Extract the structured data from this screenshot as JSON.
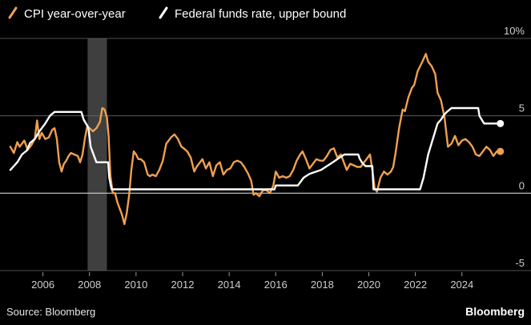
{
  "chart_data": {
    "type": "line",
    "title": "",
    "xlabel": "",
    "ylabel": "",
    "xlim": [
      2004.5,
      2025.9
    ],
    "ylim": [
      -5,
      10
    ],
    "y_ticks": [
      10,
      5,
      0,
      -5
    ],
    "y_tick_labels": [
      "10%",
      "5",
      "0",
      "-5"
    ],
    "x_ticks": [
      2006,
      2008,
      2010,
      2012,
      2014,
      2016,
      2018,
      2020,
      2022,
      2024
    ],
    "x_tick_labels": [
      "2006",
      "2008",
      "2010",
      "2012",
      "2014",
      "2016",
      "2018",
      "2020",
      "2022",
      "2024"
    ],
    "recession_shading": [
      [
        2007.92,
        2008.75
      ]
    ],
    "legend": [
      "CPI year-over-year",
      "Federal funds rate, upper bound"
    ],
    "series": [
      {
        "name": "CPI year-over-year",
        "color": "#f0a050",
        "end_marker": true,
        "points": [
          [
            2004.6,
            3.0
          ],
          [
            2004.75,
            2.6
          ],
          [
            2004.9,
            3.3
          ],
          [
            2005.0,
            3.0
          ],
          [
            2005.2,
            3.4
          ],
          [
            2005.35,
            2.8
          ],
          [
            2005.5,
            3.1
          ],
          [
            2005.65,
            3.5
          ],
          [
            2005.75,
            4.7
          ],
          [
            2005.85,
            3.5
          ],
          [
            2005.95,
            3.9
          ],
          [
            2006.1,
            3.5
          ],
          [
            2006.25,
            3.6
          ],
          [
            2006.4,
            4.1
          ],
          [
            2006.5,
            4.2
          ],
          [
            2006.6,
            3.5
          ],
          [
            2006.7,
            2.0
          ],
          [
            2006.8,
            1.4
          ],
          [
            2006.9,
            1.9
          ],
          [
            2007.0,
            2.1
          ],
          [
            2007.1,
            2.4
          ],
          [
            2007.2,
            2.6
          ],
          [
            2007.35,
            2.5
          ],
          [
            2007.5,
            2.4
          ],
          [
            2007.6,
            2.0
          ],
          [
            2007.7,
            2.5
          ],
          [
            2007.8,
            3.5
          ],
          [
            2007.9,
            4.3
          ],
          [
            2008.0,
            4.2
          ],
          [
            2008.15,
            4.0
          ],
          [
            2008.3,
            4.2
          ],
          [
            2008.45,
            4.6
          ],
          [
            2008.55,
            5.5
          ],
          [
            2008.65,
            5.4
          ],
          [
            2008.75,
            4.9
          ],
          [
            2008.82,
            3.7
          ],
          [
            2008.9,
            1.1
          ],
          [
            2009.0,
            0.0
          ],
          [
            2009.1,
            0.0
          ],
          [
            2009.2,
            -0.6
          ],
          [
            2009.3,
            -1.0
          ],
          [
            2009.4,
            -1.4
          ],
          [
            2009.5,
            -2.0
          ],
          [
            2009.6,
            -1.3
          ],
          [
            2009.7,
            -0.2
          ],
          [
            2009.8,
            1.5
          ],
          [
            2009.9,
            2.7
          ],
          [
            2010.0,
            2.5
          ],
          [
            2010.1,
            2.2
          ],
          [
            2010.2,
            2.2
          ],
          [
            2010.35,
            2.0
          ],
          [
            2010.5,
            1.2
          ],
          [
            2010.6,
            1.1
          ],
          [
            2010.7,
            1.2
          ],
          [
            2010.85,
            1.1
          ],
          [
            2011.0,
            1.5
          ],
          [
            2011.15,
            2.1
          ],
          [
            2011.3,
            3.2
          ],
          [
            2011.5,
            3.6
          ],
          [
            2011.65,
            3.8
          ],
          [
            2011.8,
            3.5
          ],
          [
            2011.95,
            3.0
          ],
          [
            2012.05,
            2.9
          ],
          [
            2012.2,
            2.7
          ],
          [
            2012.35,
            2.3
          ],
          [
            2012.5,
            1.4
          ],
          [
            2012.6,
            1.7
          ],
          [
            2012.75,
            2.0
          ],
          [
            2012.85,
            2.2
          ],
          [
            2013.0,
            1.6
          ],
          [
            2013.15,
            2.0
          ],
          [
            2013.3,
            1.1
          ],
          [
            2013.45,
            1.8
          ],
          [
            2013.6,
            2.0
          ],
          [
            2013.75,
            1.2
          ],
          [
            2013.9,
            1.5
          ],
          [
            2014.05,
            1.6
          ],
          [
            2014.2,
            2.0
          ],
          [
            2014.35,
            2.1
          ],
          [
            2014.5,
            2.0
          ],
          [
            2014.65,
            1.7
          ],
          [
            2014.8,
            1.3
          ],
          [
            2014.95,
            0.8
          ],
          [
            2015.05,
            -0.1
          ],
          [
            2015.15,
            0.0
          ],
          [
            2015.3,
            -0.2
          ],
          [
            2015.45,
            0.2
          ],
          [
            2015.6,
            0.2
          ],
          [
            2015.75,
            0.0
          ],
          [
            2015.9,
            0.5
          ],
          [
            2016.0,
            1.4
          ],
          [
            2016.15,
            1.0
          ],
          [
            2016.3,
            1.1
          ],
          [
            2016.45,
            1.0
          ],
          [
            2016.6,
            1.1
          ],
          [
            2016.75,
            1.5
          ],
          [
            2016.9,
            2.1
          ],
          [
            2017.05,
            2.5
          ],
          [
            2017.15,
            2.7
          ],
          [
            2017.3,
            2.2
          ],
          [
            2017.45,
            1.6
          ],
          [
            2017.6,
            1.9
          ],
          [
            2017.75,
            2.2
          ],
          [
            2017.9,
            2.1
          ],
          [
            2018.05,
            2.1
          ],
          [
            2018.2,
            2.4
          ],
          [
            2018.35,
            2.8
          ],
          [
            2018.5,
            2.9
          ],
          [
            2018.65,
            2.3
          ],
          [
            2018.8,
            2.5
          ],
          [
            2018.95,
            1.9
          ],
          [
            2019.05,
            1.5
          ],
          [
            2019.2,
            1.9
          ],
          [
            2019.35,
            1.8
          ],
          [
            2019.5,
            1.7
          ],
          [
            2019.65,
            1.7
          ],
          [
            2019.8,
            2.0
          ],
          [
            2019.95,
            2.3
          ],
          [
            2020.05,
            2.5
          ],
          [
            2020.15,
            1.5
          ],
          [
            2020.25,
            0.3
          ],
          [
            2020.35,
            0.1
          ],
          [
            2020.5,
            1.0
          ],
          [
            2020.65,
            1.4
          ],
          [
            2020.8,
            1.2
          ],
          [
            2020.95,
            1.4
          ],
          [
            2021.05,
            1.7
          ],
          [
            2021.15,
            2.6
          ],
          [
            2021.3,
            4.2
          ],
          [
            2021.45,
            5.4
          ],
          [
            2021.55,
            5.3
          ],
          [
            2021.7,
            6.2
          ],
          [
            2021.85,
            6.8
          ],
          [
            2021.95,
            7.0
          ],
          [
            2022.1,
            7.9
          ],
          [
            2022.3,
            8.5
          ],
          [
            2022.45,
            9.0
          ],
          [
            2022.55,
            8.5
          ],
          [
            2022.7,
            8.2
          ],
          [
            2022.85,
            7.7
          ],
          [
            2022.95,
            6.5
          ],
          [
            2023.1,
            6.0
          ],
          [
            2023.25,
            4.9
          ],
          [
            2023.4,
            3.0
          ],
          [
            2023.55,
            3.2
          ],
          [
            2023.7,
            3.7
          ],
          [
            2023.85,
            3.1
          ],
          [
            2024.0,
            3.4
          ],
          [
            2024.15,
            3.5
          ],
          [
            2024.3,
            3.3
          ],
          [
            2024.45,
            3.0
          ],
          [
            2024.6,
            2.5
          ],
          [
            2024.75,
            2.4
          ],
          [
            2024.9,
            2.7
          ],
          [
            2025.05,
            3.0
          ],
          [
            2025.2,
            2.8
          ],
          [
            2025.35,
            2.4
          ],
          [
            2025.5,
            2.7
          ],
          [
            2025.65,
            2.7
          ]
        ]
      },
      {
        "name": "Federal funds rate, upper bound",
        "color": "#ffffff",
        "end_marker": true,
        "points": [
          [
            2004.6,
            1.5
          ],
          [
            2004.75,
            1.75
          ],
          [
            2004.9,
            2.0
          ],
          [
            2005.1,
            2.5
          ],
          [
            2005.3,
            2.75
          ],
          [
            2005.45,
            3.25
          ],
          [
            2005.65,
            3.5
          ],
          [
            2005.85,
            4.0
          ],
          [
            2006.1,
            4.5
          ],
          [
            2006.3,
            5.0
          ],
          [
            2006.5,
            5.25
          ],
          [
            2007.65,
            5.25
          ],
          [
            2007.75,
            4.75
          ],
          [
            2007.95,
            4.25
          ],
          [
            2008.05,
            3.0
          ],
          [
            2008.3,
            2.0
          ],
          [
            2008.8,
            2.0
          ],
          [
            2008.85,
            1.0
          ],
          [
            2008.95,
            0.25
          ],
          [
            2015.95,
            0.25
          ],
          [
            2016.0,
            0.5
          ],
          [
            2016.95,
            0.5
          ],
          [
            2017.2,
            1.0
          ],
          [
            2017.45,
            1.25
          ],
          [
            2017.95,
            1.5
          ],
          [
            2018.2,
            1.75
          ],
          [
            2018.45,
            2.0
          ],
          [
            2018.7,
            2.25
          ],
          [
            2018.95,
            2.5
          ],
          [
            2019.55,
            2.5
          ],
          [
            2019.6,
            2.25
          ],
          [
            2019.7,
            2.0
          ],
          [
            2019.85,
            1.75
          ],
          [
            2020.15,
            1.75
          ],
          [
            2020.2,
            0.25
          ],
          [
            2022.2,
            0.25
          ],
          [
            2022.25,
            0.5
          ],
          [
            2022.35,
            1.0
          ],
          [
            2022.45,
            1.75
          ],
          [
            2022.55,
            2.5
          ],
          [
            2022.7,
            3.25
          ],
          [
            2022.85,
            4.0
          ],
          [
            2022.95,
            4.5
          ],
          [
            2023.1,
            4.75
          ],
          [
            2023.2,
            5.0
          ],
          [
            2023.35,
            5.25
          ],
          [
            2023.55,
            5.5
          ],
          [
            2024.7,
            5.5
          ],
          [
            2024.75,
            5.0
          ],
          [
            2024.85,
            4.75
          ],
          [
            2024.95,
            4.5
          ],
          [
            2025.65,
            4.5
          ]
        ]
      }
    ]
  },
  "footer": {
    "source": "Source: Bloomberg",
    "brand": "Bloomberg"
  }
}
